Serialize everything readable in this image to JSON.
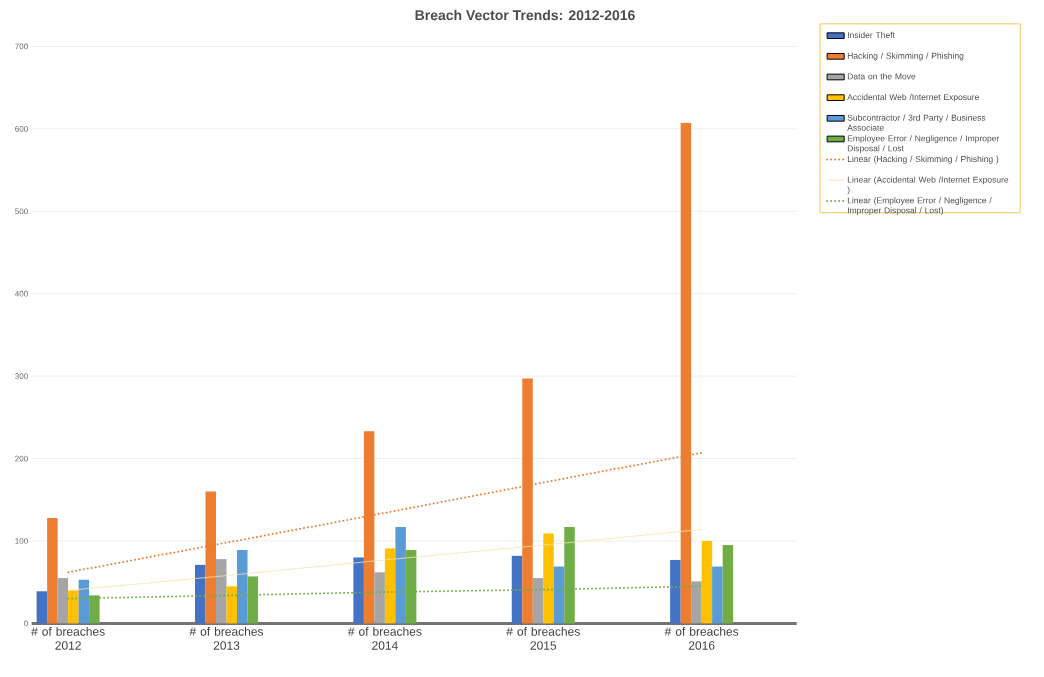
{
  "chart_data": {
    "type": "bar",
    "title": "Breach Vector Trends: 2012-2016",
    "categories": [
      "# of breaches 2012",
      "# of breaches 2013",
      "# of breaches 2014",
      "# of breaches 2015",
      "# of breaches 2016"
    ],
    "series": [
      {
        "name": "Insider Theft",
        "color": "#4472c4",
        "values": [
          39,
          71,
          80,
          82,
          77
        ]
      },
      {
        "name": "Hacking / Skimming / Phishing",
        "color": "#ed7d31",
        "values": [
          128,
          160,
          233,
          297,
          607
        ]
      },
      {
        "name": "Data on the Move",
        "color": "#a5a5a5",
        "values": [
          55,
          78,
          62,
          55,
          51
        ]
      },
      {
        "name": "Accidental Web /Internet Exposure",
        "color": "#ffc000",
        "values": [
          40,
          45,
          91,
          109,
          100
        ]
      },
      {
        "name": "Subcontractor / 3rd Party / Business Associate",
        "color": "#5b9bd5",
        "values": [
          53,
          89,
          117,
          69,
          69
        ]
      },
      {
        "name": "Employee Error / Negligence / Improper Disposal / Lost",
        "color": "#70ad47",
        "values": [
          34,
          57,
          89,
          117,
          95
        ]
      },
      {
        "name": "Linear (Hacking / Skimming / Phishing )",
        "type": "line",
        "line_style": "dotted",
        "color": "#ed7d31",
        "values": [
          62,
          98,
          134,
          171,
          207
        ]
      },
      {
        "name": "Linear (Accidental Web /Internet Exposure )",
        "type": "line",
        "line_style": "solid",
        "color": "#f8e3b0",
        "values": [
          40,
          58,
          77,
          95,
          114
        ]
      },
      {
        "name": "Linear (Employee Error / Negligence / Improper Disposal / Lost)",
        "type": "line",
        "line_style": "dotted",
        "color": "#70ad47",
        "values": [
          30,
          34,
          38,
          41,
          45
        ]
      }
    ],
    "ylim": [
      0,
      700
    ],
    "yticks": [
      0,
      100,
      200,
      300,
      400,
      500,
      600,
      700
    ],
    "grid": "y",
    "legend": "top right"
  }
}
